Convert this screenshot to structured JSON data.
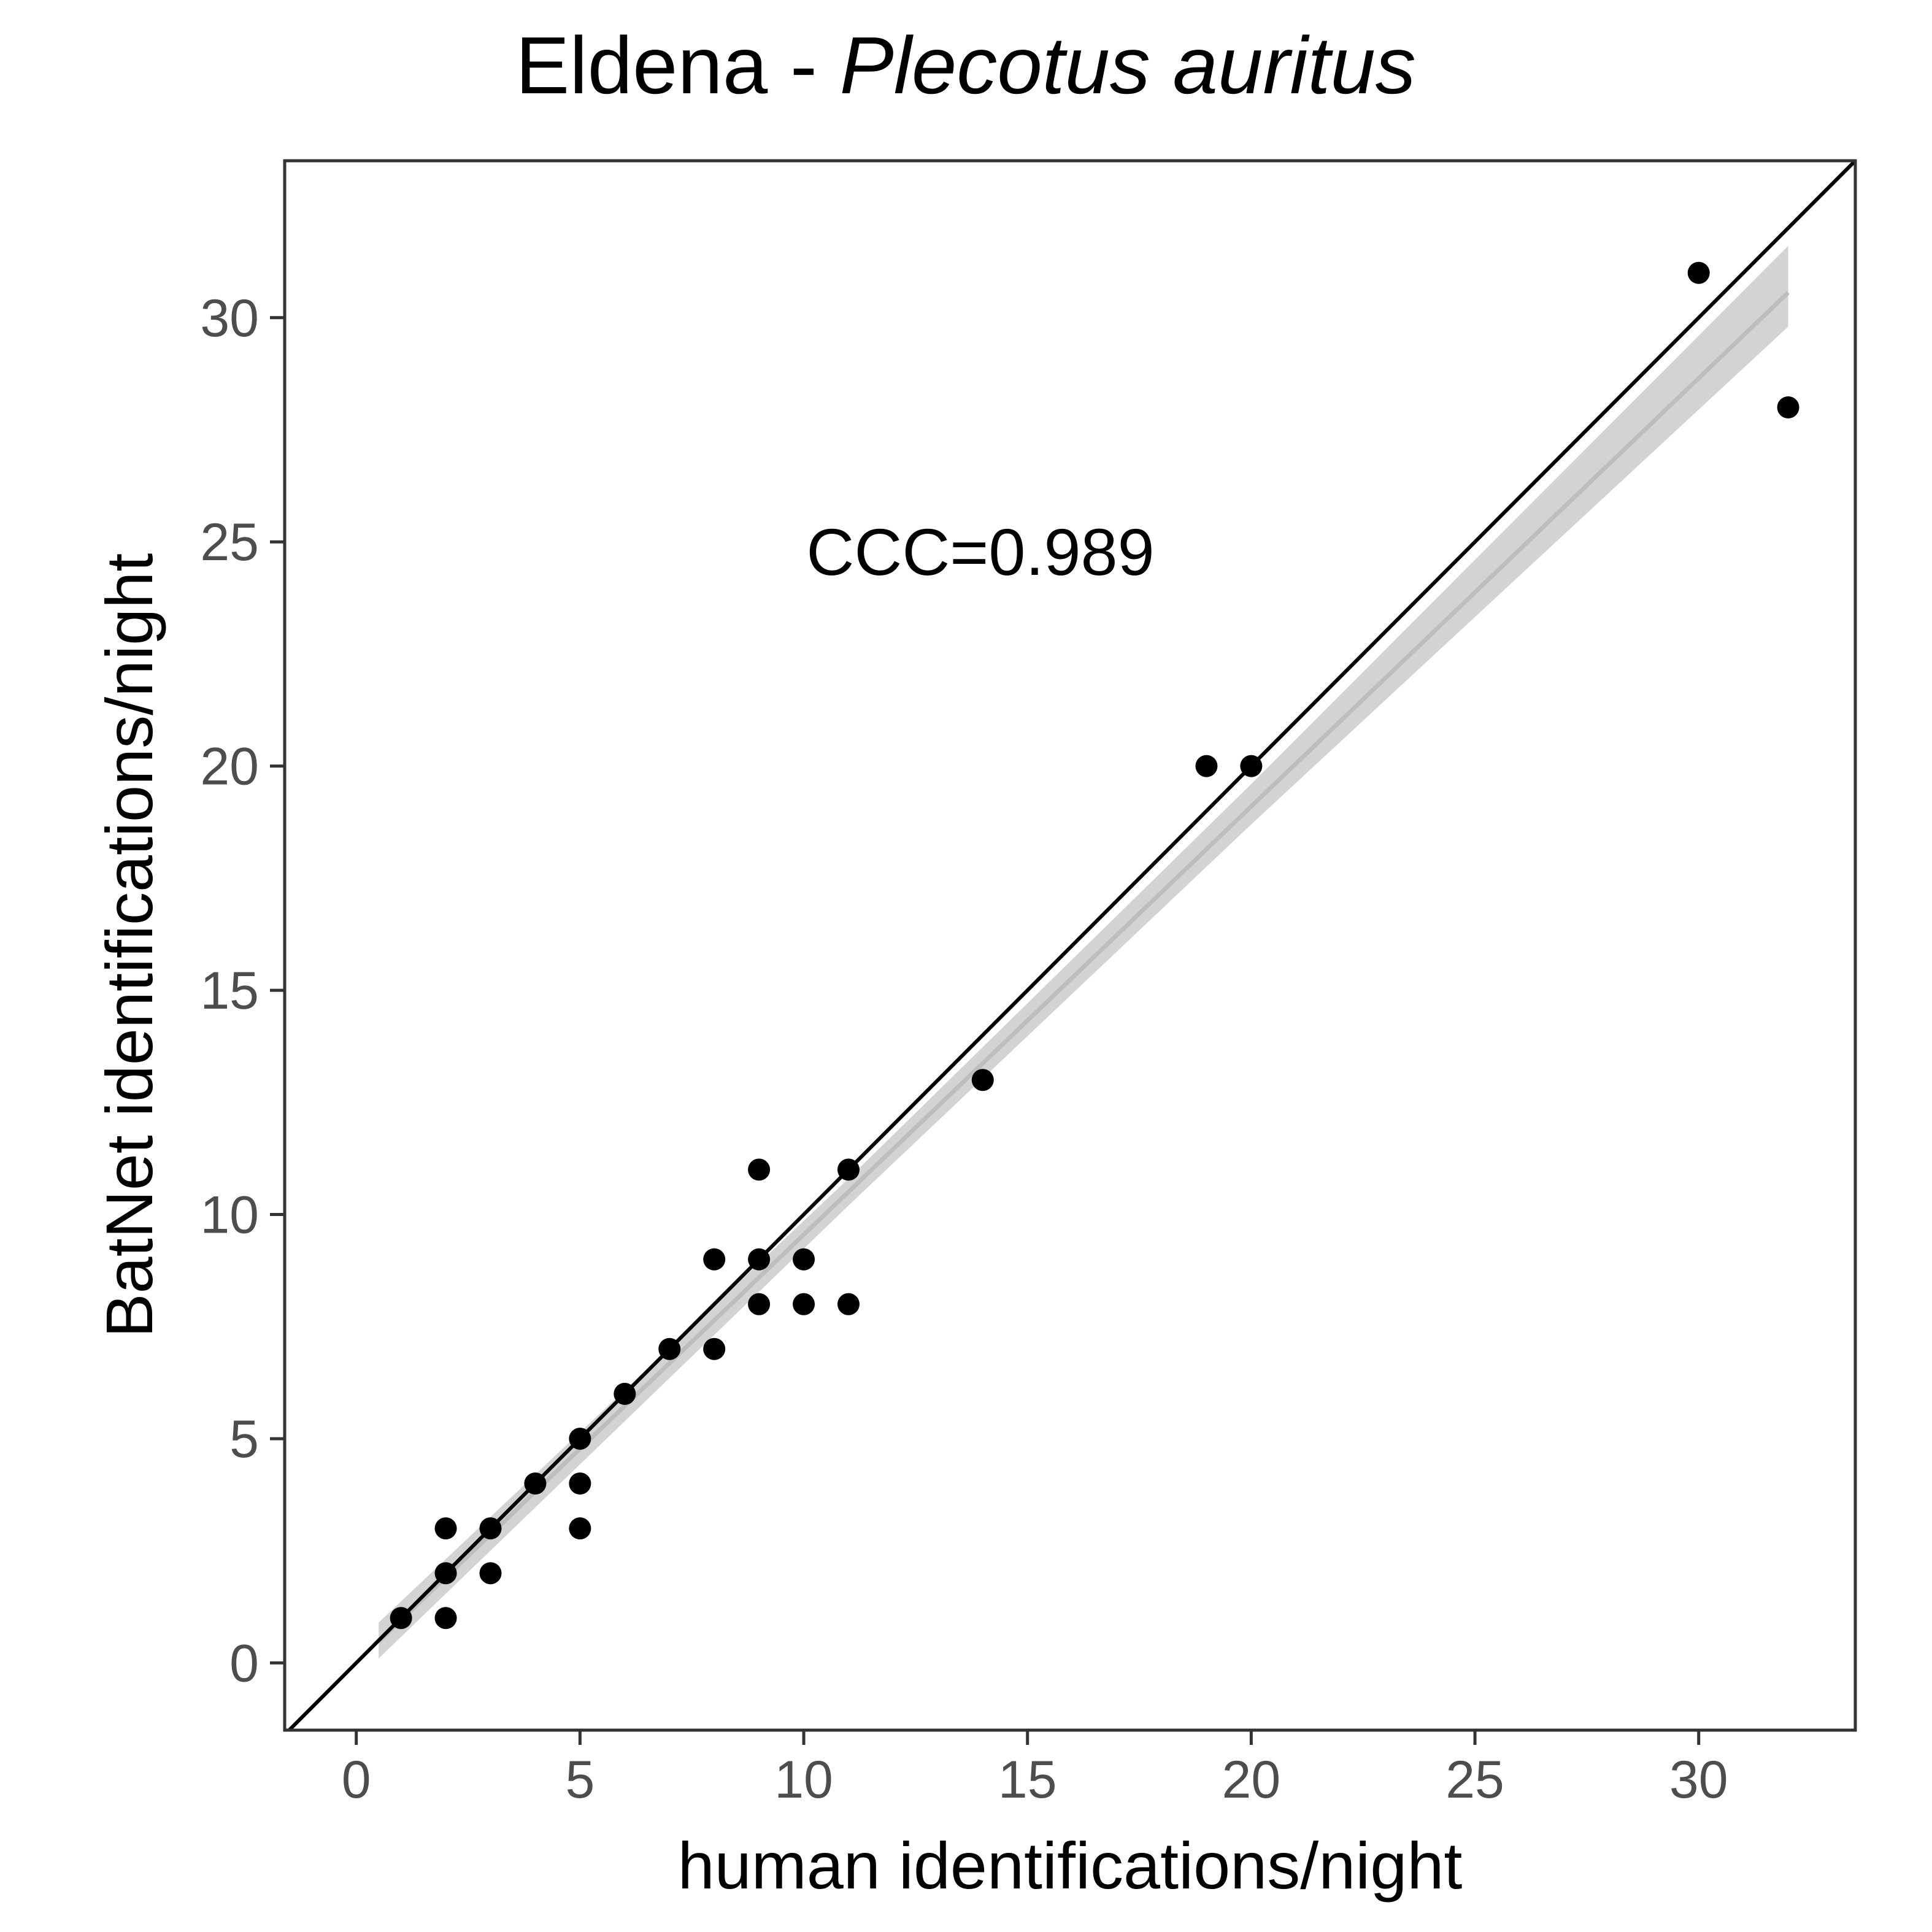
{
  "chart_data": {
    "type": "scatter",
    "title_prefix": "Eldena - ",
    "title_species": "Plecotus auritus",
    "xlabel": "human identifications/night",
    "ylabel": "BatNet identifications/night",
    "xlim": [
      -1.6,
      33.5
    ],
    "ylim": [
      -1.5,
      33.5
    ],
    "x_ticks": [
      0,
      5,
      10,
      15,
      20,
      25,
      30
    ],
    "y_ticks": [
      0,
      5,
      10,
      15,
      20,
      25,
      30
    ],
    "x_tick_labels": [
      "0",
      "5",
      "10",
      "15",
      "20",
      "25",
      "30"
    ],
    "y_tick_labels": [
      "0",
      "5",
      "10",
      "15",
      "20",
      "25",
      "30"
    ],
    "annotation": "CCC=0.989",
    "grid": false,
    "identity_line": true,
    "fit_line": {
      "x_range": [
        0.5,
        32
      ],
      "slope": 0.955,
      "intercept": 0.0
    },
    "confidence_band": {
      "x": [
        0.5,
        11,
        20,
        32
      ],
      "lower": [
        0.1,
        10.2,
        18.7,
        29.8
      ],
      "upper": [
        0.9,
        10.8,
        19.6,
        31.6
      ]
    },
    "colors": {
      "points": "#000000",
      "identity_line": "#000000",
      "band": "#d3d3d3",
      "fit_line": "#bdbdbd",
      "tick_text": "#4d4d4d",
      "frame": "#333333"
    },
    "points": [
      {
        "x": 1,
        "y": 1
      },
      {
        "x": 2,
        "y": 1
      },
      {
        "x": 2,
        "y": 2
      },
      {
        "x": 2,
        "y": 3
      },
      {
        "x": 3,
        "y": 2
      },
      {
        "x": 3,
        "y": 3
      },
      {
        "x": 4,
        "y": 4
      },
      {
        "x": 5,
        "y": 3
      },
      {
        "x": 5,
        "y": 4
      },
      {
        "x": 5,
        "y": 5
      },
      {
        "x": 6,
        "y": 6
      },
      {
        "x": 7,
        "y": 7
      },
      {
        "x": 8,
        "y": 7
      },
      {
        "x": 8,
        "y": 9
      },
      {
        "x": 9,
        "y": 8
      },
      {
        "x": 9,
        "y": 9
      },
      {
        "x": 9,
        "y": 11
      },
      {
        "x": 10,
        "y": 8
      },
      {
        "x": 10,
        "y": 9
      },
      {
        "x": 11,
        "y": 8
      },
      {
        "x": 11,
        "y": 11
      },
      {
        "x": 14,
        "y": 13
      },
      {
        "x": 19,
        "y": 20
      },
      {
        "x": 20,
        "y": 20
      },
      {
        "x": 30,
        "y": 31
      },
      {
        "x": 32,
        "y": 28
      }
    ]
  }
}
